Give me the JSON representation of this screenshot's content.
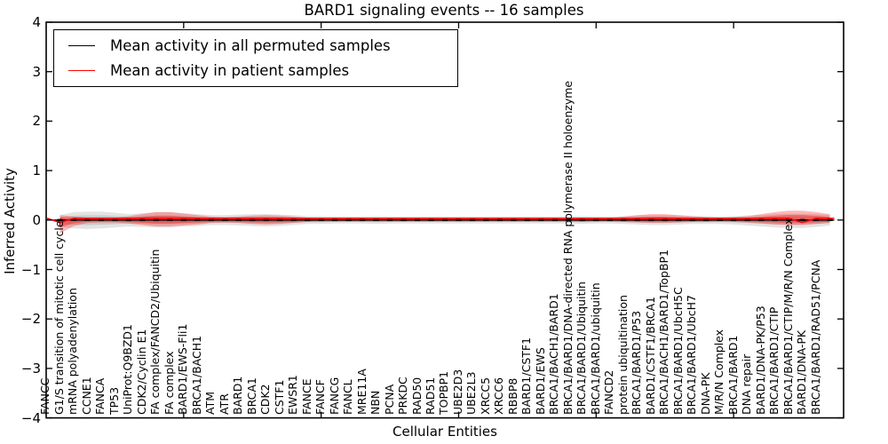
{
  "chart_data": {
    "type": "area",
    "title": "BARD1 signaling events -- 16 samples",
    "xlabel": "Cellular Entities",
    "ylabel": "Inferred Activity",
    "ylim": [
      -4,
      4
    ],
    "yticks": [
      4,
      3,
      2,
      1,
      0,
      -1,
      -2,
      -3,
      -4
    ],
    "ytick_labels": [
      "4",
      "3",
      "2",
      "1",
      "0",
      "−1",
      "−2",
      "−3",
      "−4"
    ],
    "grid": false,
    "legend_position": "upper left",
    "sample_count": "16 samples",
    "categories": [
      "FANCC",
      "G1/S transition of mitotic cell cycle",
      "mRNA polyadenylation",
      "CCNE1",
      "FANCA",
      "TP53",
      "UniProt:Q9BZD1",
      "CDK2/Cyclin E1",
      "FA complex/FANCD2/Ubiquitin",
      "FA complex",
      "BARD1/EWS-Fli1",
      "BRCA1/BACH1",
      "ATM",
      "ATR",
      "BARD1",
      "BRCA1",
      "CDK2",
      "CSTF1",
      "EWSR1",
      "FANCE",
      "FANCF",
      "FANCG",
      "FANCL",
      "MRE11A",
      "NBN",
      "PCNA",
      "PRKDC",
      "RAD50",
      "RAD51",
      "TOPBP1",
      "UBE2D3",
      "UBE2L3",
      "XRCC5",
      "XRCC6",
      "RBBP8",
      "BARD1/CSTF1",
      "BARD1/EWS",
      "BRCA1/BACH1/BARD1",
      "BRCA1/BARD1/DNA-directed RNA polymerase II holoenzyme",
      "BRCA1/BARD1/Ubiquitin",
      "BRCA1/BARD1/ubiquitin",
      "FANCD2",
      "protein ubiquitination",
      "BRCA1/BARD1/P53",
      "BARD1/CSTF1/BRCA1",
      "BRCA1/BACH1/BARD1/TopBP1",
      "BRCA1/BARD1/UbcH5C",
      "BRCA1/BARD1/UbcH7",
      "DNA-PK",
      "M/R/N Complex",
      "BRCA1/BARD1",
      "DNA repair",
      "BARD1/DNA-PK/P53",
      "BRCA1/BARD1/CTIP",
      "BRCA1/BARD1/CTIP/M/R/N Complex",
      "BARD1/DNA-PK",
      "BRCA1/BARD1/RAD51/PCNA"
    ],
    "series": [
      {
        "name": "Mean activity in all permuted samples",
        "color": "#000000",
        "values": [
          0,
          0,
          0,
          0,
          0,
          0,
          0,
          0,
          0,
          0,
          0,
          0,
          0,
          0,
          0,
          0,
          0,
          0,
          0,
          0,
          0,
          0,
          0,
          0,
          0,
          0,
          0,
          0,
          0,
          0,
          0,
          0,
          0,
          0,
          0,
          0,
          0,
          0,
          0,
          0,
          0,
          0,
          0,
          0,
          0,
          0,
          0,
          0,
          0,
          0,
          0,
          0,
          0,
          0,
          0,
          0,
          0
        ]
      },
      {
        "name": "Mean activity in patient samples",
        "color": "#ff0000",
        "values": [
          -0.05,
          0.035,
          0.035,
          0.035,
          0.035,
          0.035,
          0.035,
          0.035,
          0.035,
          0.035,
          0.035,
          0.035,
          0.035,
          0.035,
          0.035,
          0.035,
          0.035,
          0.035,
          0.035,
          0.035,
          0.035,
          0.035,
          0.035,
          0.035,
          0.035,
          0.035,
          0.035,
          0.035,
          0.035,
          0.035,
          0.035,
          0.035,
          0.035,
          0.035,
          0.035,
          0.035,
          0.035,
          0.035,
          0.035,
          0.035,
          0.035,
          0.035,
          0.035,
          0.035,
          0.035,
          0.035,
          0.035,
          0.035,
          0.035,
          0.035,
          0.035,
          0.035,
          0.035,
          0.035,
          -0.05,
          0.035,
          0.035
        ]
      }
    ],
    "bands": [
      {
        "name": "permuted samples activity distribution",
        "color": "#999999",
        "top": [
          0.1,
          0.16,
          0.17,
          0.17,
          0.15,
          0.12,
          0.14,
          0.16,
          0.16,
          0.14,
          0.12,
          0.1,
          0.1,
          0.11,
          0.12,
          0.12,
          0.11,
          0.1,
          0.08,
          0.08,
          0.07,
          0.07,
          0.07,
          0.08,
          0.07,
          0.07,
          0.07,
          0.07,
          0.07,
          0.07,
          0.07,
          0.07,
          0.07,
          0.07,
          0.07,
          0.07,
          0.07,
          0.07,
          0.08,
          0.07,
          0.07,
          0.08,
          0.09,
          0.1,
          0.1,
          0.09,
          0.08,
          0.08,
          0.07,
          0.08,
          0.09,
          0.1,
          0.12,
          0.13,
          0.13,
          0.12,
          0.1
        ],
        "bottom": [
          0.14,
          0.17,
          0.18,
          0.17,
          0.15,
          0.13,
          0.14,
          0.15,
          0.15,
          0.13,
          0.12,
          0.1,
          0.1,
          0.11,
          0.12,
          0.13,
          0.12,
          0.1,
          0.08,
          0.08,
          0.07,
          0.07,
          0.07,
          0.08,
          0.07,
          0.07,
          0.07,
          0.07,
          0.07,
          0.07,
          0.07,
          0.07,
          0.07,
          0.07,
          0.07,
          0.07,
          0.07,
          0.07,
          0.08,
          0.07,
          0.07,
          0.08,
          0.09,
          0.1,
          0.1,
          0.09,
          0.08,
          0.08,
          0.08,
          0.09,
          0.11,
          0.13,
          0.15,
          0.16,
          0.16,
          0.14,
          0.11
        ]
      },
      {
        "name": "patient samples activity distribution",
        "color": "#ff0000",
        "top": [
          0.1,
          0.07,
          0.05,
          0.05,
          0.05,
          0.08,
          0.12,
          0.16,
          0.16,
          0.13,
          0.1,
          0.07,
          0.06,
          0.07,
          0.09,
          0.1,
          0.09,
          0.07,
          0.05,
          0.04,
          0.04,
          0.04,
          0.04,
          0.04,
          0.04,
          0.04,
          0.04,
          0.04,
          0.04,
          0.04,
          0.04,
          0.04,
          0.04,
          0.04,
          0.04,
          0.04,
          0.04,
          0.04,
          0.05,
          0.04,
          0.04,
          0.07,
          0.1,
          0.12,
          0.12,
          0.1,
          0.08,
          0.06,
          0.05,
          0.06,
          0.08,
          0.12,
          0.16,
          0.19,
          0.19,
          0.16,
          0.12
        ],
        "bottom": [
          0.27,
          0.12,
          0.06,
          0.05,
          0.05,
          0.07,
          0.1,
          0.13,
          0.13,
          0.11,
          0.09,
          0.06,
          0.05,
          0.06,
          0.08,
          0.09,
          0.08,
          0.06,
          0.04,
          0.03,
          0.03,
          0.03,
          0.03,
          0.03,
          0.03,
          0.03,
          0.03,
          0.03,
          0.03,
          0.03,
          0.03,
          0.03,
          0.03,
          0.03,
          0.03,
          0.03,
          0.03,
          0.03,
          0.04,
          0.03,
          0.03,
          0.04,
          0.05,
          0.06,
          0.06,
          0.05,
          0.04,
          0.04,
          0.03,
          0.04,
          0.05,
          0.07,
          0.09,
          0.1,
          0.1,
          0.08,
          0.06
        ]
      }
    ],
    "markers": {
      "shape": "horizontal-dash",
      "color": "#000000"
    }
  }
}
